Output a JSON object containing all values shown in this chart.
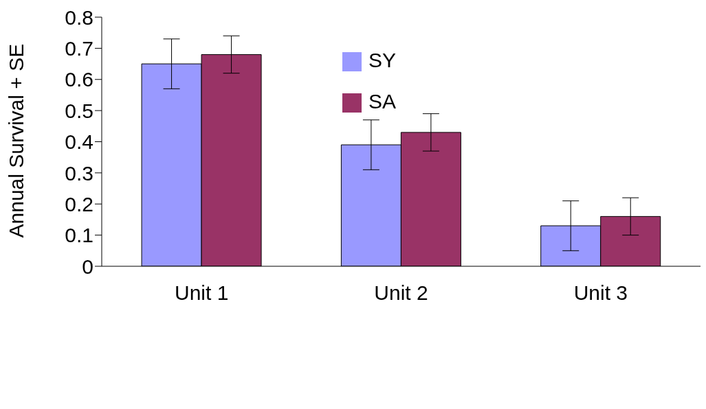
{
  "chart_data": {
    "type": "bar",
    "ylabel": "Annual Survival + SE",
    "categories": [
      "Unit 1",
      "Unit 2",
      "Unit 3"
    ],
    "series": [
      {
        "name": "SY",
        "color": "#9999ff",
        "values": [
          0.65,
          0.39,
          0.13
        ],
        "errors": [
          0.08,
          0.08,
          0.08
        ]
      },
      {
        "name": "SA",
        "color": "#993366",
        "values": [
          0.68,
          0.43,
          0.16
        ],
        "errors": [
          0.06,
          0.06,
          0.06
        ]
      }
    ],
    "ylim": [
      0,
      0.8
    ],
    "yticks": [
      0,
      0.1,
      0.2,
      0.3,
      0.4,
      0.5,
      0.6,
      0.7,
      0.8
    ],
    "grid": false,
    "legend": "top"
  }
}
